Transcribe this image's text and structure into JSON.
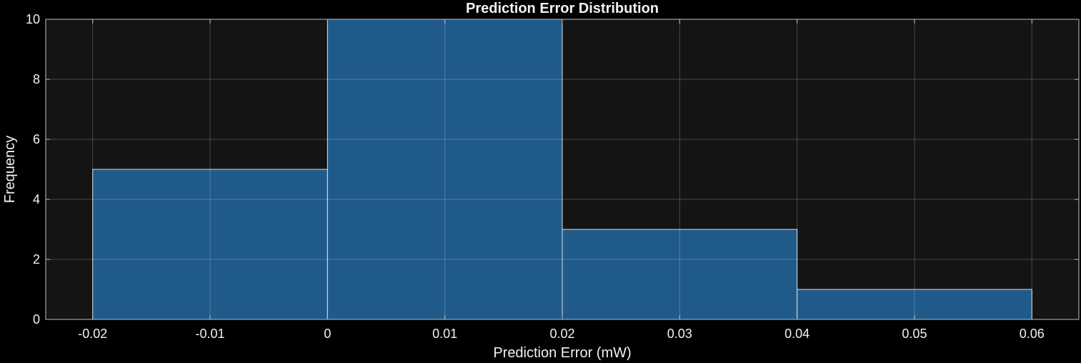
{
  "chart_data": {
    "type": "bar",
    "title": "Prediction Error Distribution",
    "xlabel": "Prediction Error (mW)",
    "ylabel": "Frequency",
    "bins": [
      {
        "start": -0.02,
        "end": 0.0,
        "count": 5
      },
      {
        "start": 0.0,
        "end": 0.02,
        "count": 10
      },
      {
        "start": 0.02,
        "end": 0.04,
        "count": 3
      },
      {
        "start": 0.04,
        "end": 0.06,
        "count": 1
      }
    ],
    "xlim": [
      -0.024,
      0.064
    ],
    "ylim": [
      0,
      10
    ],
    "x_ticks": [
      -0.02,
      -0.01,
      0,
      0.01,
      0.02,
      0.03,
      0.04,
      0.05,
      0.06
    ],
    "x_tick_labels": [
      "-0.02",
      "-0.01",
      "0",
      "0.01",
      "0.02",
      "0.03",
      "0.04",
      "0.05",
      "0.06"
    ],
    "y_ticks": [
      0,
      2,
      4,
      6,
      8,
      10
    ],
    "y_tick_labels": [
      "0",
      "2",
      "4",
      "6",
      "8",
      "10"
    ],
    "grid": true,
    "colors": {
      "background": "#000000",
      "axes_background": "#141414",
      "bar_fill": "#1f5a8b",
      "bar_edge": "#d9d9d9",
      "text": "#f2f2f2"
    }
  }
}
